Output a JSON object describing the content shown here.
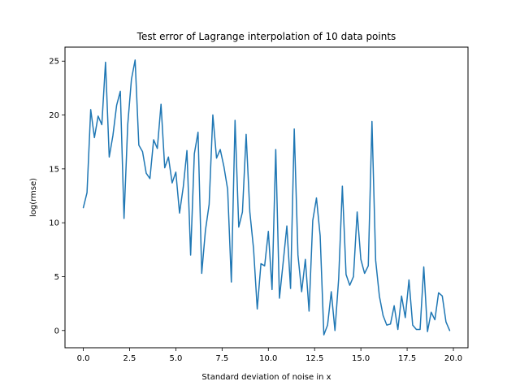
{
  "chart_data": {
    "type": "line",
    "title": "Test error of Lagrange interpolation of 10 data points",
    "xlabel": "Standard deviation of noise in x",
    "ylabel": "log(rmse)",
    "xlim": [
      -0.99,
      20.79
    ],
    "ylim": [
      -1.6,
      26.3
    ],
    "xticks": [
      0.0,
      2.5,
      5.0,
      7.5,
      10.0,
      12.5,
      15.0,
      17.5,
      20.0
    ],
    "xtick_labels": [
      "0.0",
      "2.5",
      "5.0",
      "7.5",
      "10.0",
      "12.5",
      "15.0",
      "17.5",
      "20.0"
    ],
    "yticks": [
      0,
      5,
      10,
      15,
      20,
      25
    ],
    "ytick_labels": [
      "0",
      "5",
      "10",
      "15",
      "20",
      "25"
    ],
    "grid": false,
    "legend": "none",
    "series": [
      {
        "color": "#1f77b4",
        "x": [
          0.0,
          0.2,
          0.4,
          0.6,
          0.8,
          1.0,
          1.2,
          1.4,
          1.6,
          1.8,
          2.0,
          2.2,
          2.4,
          2.6,
          2.8,
          3.0,
          3.2,
          3.4,
          3.6,
          3.8,
          4.0,
          4.2,
          4.4,
          4.6,
          4.8,
          5.0,
          5.2,
          5.4,
          5.6,
          5.8,
          6.0,
          6.2,
          6.4,
          6.6,
          6.8,
          7.0,
          7.2,
          7.4,
          7.6,
          7.8,
          8.0,
          8.2,
          8.4,
          8.6,
          8.8,
          9.0,
          9.2,
          9.4,
          9.6,
          9.8,
          10.0,
          10.2,
          10.4,
          10.6,
          10.8,
          11.0,
          11.2,
          11.4,
          11.6,
          11.8,
          12.0,
          12.2,
          12.4,
          12.6,
          12.8,
          13.0,
          13.2,
          13.4,
          13.6,
          13.8,
          14.0,
          14.2,
          14.4,
          14.6,
          14.8,
          15.0,
          15.2,
          15.4,
          15.6,
          15.8,
          16.0,
          16.2,
          16.4,
          16.6,
          16.8,
          17.0,
          17.2,
          17.4,
          17.6,
          17.8,
          18.0,
          18.2,
          18.4,
          18.6,
          18.8,
          19.0,
          19.2,
          19.4,
          19.6,
          19.8
        ],
        "values": [
          11.4,
          12.8,
          20.5,
          17.9,
          19.9,
          19.1,
          24.9,
          16.1,
          18.1,
          20.9,
          22.2,
          10.4,
          19.1,
          23.3,
          25.1,
          17.2,
          16.6,
          14.6,
          14.1,
          17.7,
          16.9,
          21.0,
          15.1,
          16.1,
          13.7,
          14.7,
          10.9,
          13.3,
          16.7,
          7.0,
          16.4,
          18.4,
          5.3,
          9.3,
          11.7,
          20.0,
          16.0,
          16.8,
          15.2,
          13.1,
          4.5,
          19.5,
          9.6,
          11.0,
          18.2,
          11.0,
          7.6,
          2.0,
          6.2,
          6.0,
          9.2,
          3.8,
          16.8,
          3.0,
          6.3,
          9.7,
          3.9,
          18.7,
          7.0,
          3.6,
          6.6,
          1.8,
          10.2,
          12.3,
          8.8,
          -0.4,
          0.5,
          3.6,
          0.0,
          4.8,
          13.4,
          5.2,
          4.2,
          5.0,
          11.0,
          6.6,
          5.3,
          6.0,
          19.4,
          6.5,
          3.2,
          1.4,
          0.5,
          0.6,
          2.3,
          0.1,
          3.2,
          1.2,
          4.7,
          0.5,
          0.1,
          0.1,
          5.9,
          -0.1,
          1.7,
          1.0,
          3.5,
          3.2,
          0.8,
          0.0
        ]
      }
    ]
  }
}
